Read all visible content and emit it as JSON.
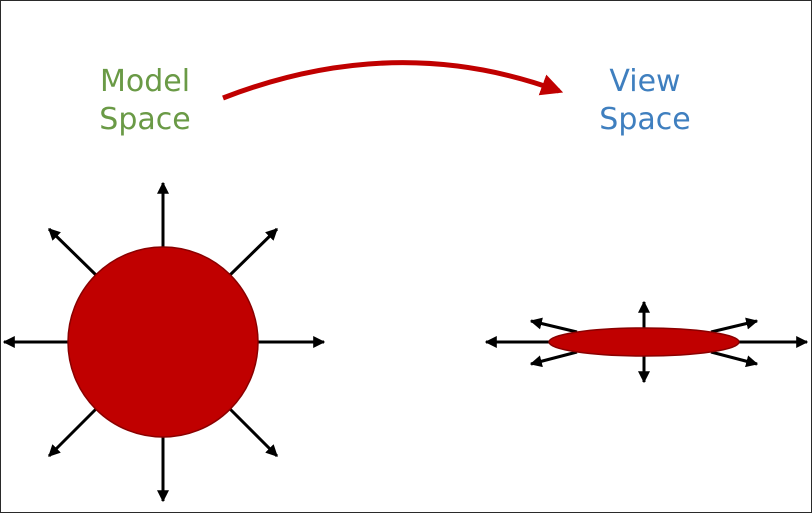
{
  "labels": {
    "model": {
      "line1": "Model",
      "line2": "Space",
      "color": "#6a9a46"
    },
    "view": {
      "line1": "View",
      "line2": "Space",
      "color": "#3f7fbf"
    }
  },
  "colors": {
    "shape_fill": "#c00000",
    "shape_stroke": "#8a0000",
    "arrow_red": "#c00000",
    "normal_arrow": "#000000",
    "border": "#2a2a2a"
  },
  "icons": {
    "transform_arrow": "curved-arrow-icon",
    "normal_arrows": "arrow-icon"
  }
}
